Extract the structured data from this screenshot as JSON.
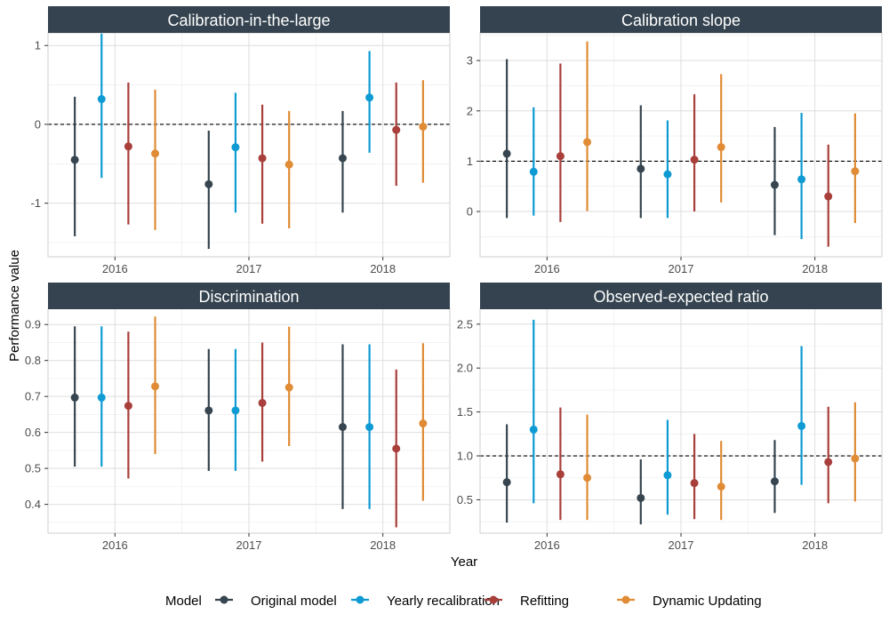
{
  "axes": {
    "x_title": "Year",
    "y_title": "Performance value"
  },
  "legend": {
    "title": "Model",
    "items": [
      "Original model",
      "Yearly recalibration",
      "Refitting",
      "Dynamic Updating"
    ]
  },
  "colors": {
    "Original model": "#36454f",
    "Yearly recalibration": "#0e9bd3",
    "Refitting": "#a83f3a",
    "Dynamic Updating": "#e08b35",
    "strip_bg": "#34434f"
  },
  "chart_data": [
    {
      "type": "scatter",
      "title": "Calibration-in-the-large",
      "xlabel": "Year",
      "ylabel": "Performance value",
      "categories": [
        "2016",
        "2017",
        "2018"
      ],
      "ylim": [
        -1.68,
        1.16
      ],
      "yticks": [
        -1,
        0,
        1
      ],
      "reference_line": 0,
      "grid": true,
      "series": [
        {
          "name": "Original model",
          "points": [
            {
              "x": "2016",
              "y": -0.45,
              "low": -1.42,
              "high": 0.35
            },
            {
              "x": "2017",
              "y": -0.76,
              "low": -1.58,
              "high": -0.08
            },
            {
              "x": "2018",
              "y": -0.43,
              "low": -1.12,
              "high": 0.17
            }
          ]
        },
        {
          "name": "Yearly recalibration",
          "points": [
            {
              "x": "2016",
              "y": 0.32,
              "low": -0.68,
              "high": 1.15
            },
            {
              "x": "2017",
              "y": -0.29,
              "low": -1.12,
              "high": 0.4
            },
            {
              "x": "2018",
              "y": 0.34,
              "low": -0.36,
              "high": 0.93
            }
          ]
        },
        {
          "name": "Refitting",
          "points": [
            {
              "x": "2016",
              "y": -0.28,
              "low": -1.27,
              "high": 0.53
            },
            {
              "x": "2017",
              "y": -0.43,
              "low": -1.26,
              "high": 0.25
            },
            {
              "x": "2018",
              "y": -0.07,
              "low": -0.78,
              "high": 0.53
            }
          ]
        },
        {
          "name": "Dynamic Updating",
          "points": [
            {
              "x": "2016",
              "y": -0.37,
              "low": -1.34,
              "high": 0.44
            },
            {
              "x": "2017",
              "y": -0.51,
              "low": -1.32,
              "high": 0.17
            },
            {
              "x": "2018",
              "y": -0.03,
              "low": -0.74,
              "high": 0.56
            }
          ]
        }
      ]
    },
    {
      "type": "scatter",
      "title": "Calibration slope",
      "xlabel": "Year",
      "ylabel": "Performance value",
      "categories": [
        "2016",
        "2017",
        "2018"
      ],
      "ylim": [
        -0.9,
        3.55
      ],
      "yticks": [
        0,
        1,
        2,
        3
      ],
      "reference_line": 1,
      "grid": true,
      "series": [
        {
          "name": "Original model",
          "points": [
            {
              "x": "2016",
              "y": 1.15,
              "low": -0.13,
              "high": 3.03
            },
            {
              "x": "2017",
              "y": 0.85,
              "low": -0.13,
              "high": 2.11
            },
            {
              "x": "2018",
              "y": 0.53,
              "low": -0.47,
              "high": 1.68
            }
          ]
        },
        {
          "name": "Yearly recalibration",
          "points": [
            {
              "x": "2016",
              "y": 0.79,
              "low": -0.08,
              "high": 2.07
            },
            {
              "x": "2017",
              "y": 0.74,
              "low": -0.13,
              "high": 1.81
            },
            {
              "x": "2018",
              "y": 0.64,
              "low": -0.55,
              "high": 1.96
            }
          ]
        },
        {
          "name": "Refitting",
          "points": [
            {
              "x": "2016",
              "y": 1.1,
              "low": -0.21,
              "high": 2.94
            },
            {
              "x": "2017",
              "y": 1.03,
              "low": 0.0,
              "high": 2.33
            },
            {
              "x": "2018",
              "y": 0.3,
              "low": -0.7,
              "high": 1.33
            }
          ]
        },
        {
          "name": "Dynamic Updating",
          "points": [
            {
              "x": "2016",
              "y": 1.38,
              "low": 0.01,
              "high": 3.38
            },
            {
              "x": "2017",
              "y": 1.28,
              "low": 0.18,
              "high": 2.73
            },
            {
              "x": "2018",
              "y": 0.8,
              "low": -0.23,
              "high": 1.95
            }
          ]
        }
      ]
    },
    {
      "type": "scatter",
      "title": "Discrimination",
      "xlabel": "Year",
      "ylabel": "Performance value",
      "categories": [
        "2016",
        "2017",
        "2018"
      ],
      "ylim": [
        0.32,
        0.945
      ],
      "yticks": [
        0.4,
        0.5,
        0.6,
        0.7,
        0.8,
        0.9
      ],
      "reference_line": null,
      "grid": true,
      "series": [
        {
          "name": "Original model",
          "points": [
            {
              "x": "2016",
              "y": 0.697,
              "low": 0.505,
              "high": 0.895
            },
            {
              "x": "2017",
              "y": 0.661,
              "low": 0.493,
              "high": 0.832
            },
            {
              "x": "2018",
              "y": 0.615,
              "low": 0.387,
              "high": 0.845
            }
          ]
        },
        {
          "name": "Yearly recalibration",
          "points": [
            {
              "x": "2016",
              "y": 0.697,
              "low": 0.505,
              "high": 0.895
            },
            {
              "x": "2017",
              "y": 0.661,
              "low": 0.493,
              "high": 0.832
            },
            {
              "x": "2018",
              "y": 0.615,
              "low": 0.387,
              "high": 0.845
            }
          ]
        },
        {
          "name": "Refitting",
          "points": [
            {
              "x": "2016",
              "y": 0.674,
              "low": 0.472,
              "high": 0.88
            },
            {
              "x": "2017",
              "y": 0.682,
              "low": 0.519,
              "high": 0.85
            },
            {
              "x": "2018",
              "y": 0.555,
              "low": 0.336,
              "high": 0.775
            }
          ]
        },
        {
          "name": "Dynamic Updating",
          "points": [
            {
              "x": "2016",
              "y": 0.728,
              "low": 0.54,
              "high": 0.922
            },
            {
              "x": "2017",
              "y": 0.725,
              "low": 0.562,
              "high": 0.894
            },
            {
              "x": "2018",
              "y": 0.625,
              "low": 0.41,
              "high": 0.848
            }
          ]
        }
      ]
    },
    {
      "type": "scatter",
      "title": "Observed-expected ratio",
      "xlabel": "Year",
      "ylabel": "Performance value",
      "categories": [
        "2016",
        "2017",
        "2018"
      ],
      "ylim": [
        0.12,
        2.68
      ],
      "yticks": [
        0.5,
        1.0,
        1.5,
        2.0,
        2.5
      ],
      "reference_line": 1,
      "grid": true,
      "series": [
        {
          "name": "Original model",
          "points": [
            {
              "x": "2016",
              "y": 0.7,
              "low": 0.24,
              "high": 1.36
            },
            {
              "x": "2017",
              "y": 0.52,
              "low": 0.22,
              "high": 0.96
            },
            {
              "x": "2018",
              "y": 0.71,
              "low": 0.35,
              "high": 1.18
            }
          ]
        },
        {
          "name": "Yearly recalibration",
          "points": [
            {
              "x": "2016",
              "y": 1.3,
              "low": 0.46,
              "high": 2.55
            },
            {
              "x": "2017",
              "y": 0.78,
              "low": 0.33,
              "high": 1.41
            },
            {
              "x": "2018",
              "y": 1.34,
              "low": 0.67,
              "high": 2.25
            }
          ]
        },
        {
          "name": "Refitting",
          "points": [
            {
              "x": "2016",
              "y": 0.79,
              "low": 0.27,
              "high": 1.55
            },
            {
              "x": "2017",
              "y": 0.69,
              "low": 0.28,
              "high": 1.25
            },
            {
              "x": "2018",
              "y": 0.93,
              "low": 0.46,
              "high": 1.56
            }
          ]
        },
        {
          "name": "Dynamic Updating",
          "points": [
            {
              "x": "2016",
              "y": 0.75,
              "low": 0.27,
              "high": 1.47
            },
            {
              "x": "2017",
              "y": 0.65,
              "low": 0.27,
              "high": 1.17
            },
            {
              "x": "2018",
              "y": 0.97,
              "low": 0.48,
              "high": 1.61
            }
          ]
        }
      ]
    }
  ]
}
